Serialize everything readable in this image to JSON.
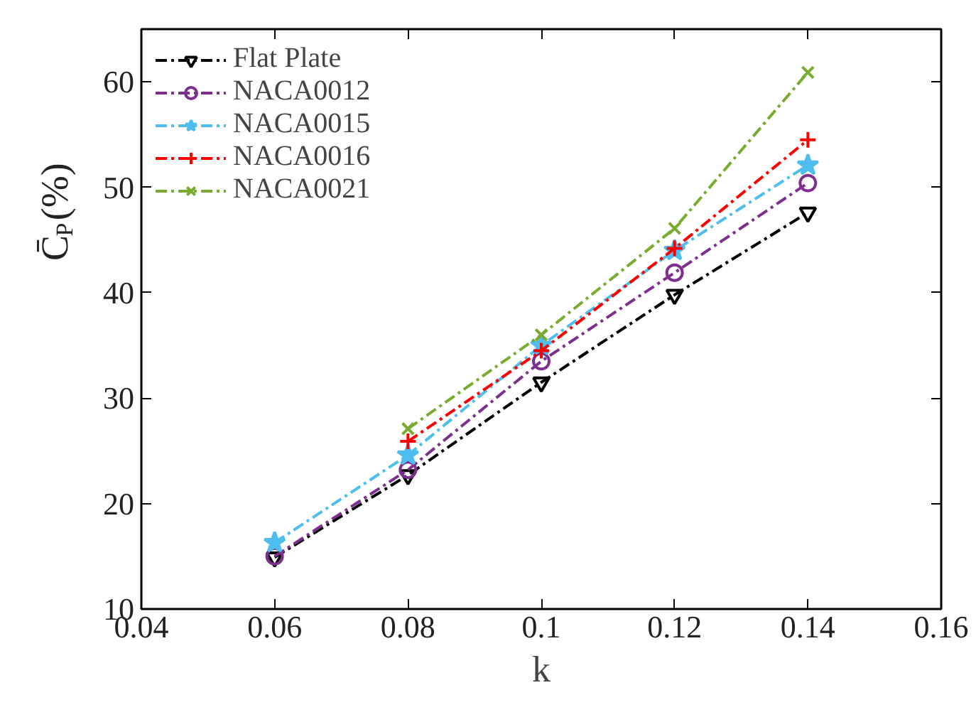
{
  "chart_data": {
    "type": "line",
    "xlabel": "k",
    "ylabel": "C̄$_{P}$(%)",
    "x": [
      0.06,
      0.08,
      0.1,
      0.12,
      0.14
    ],
    "series": [
      {
        "name": "Flat Plate",
        "color": "#000000",
        "marker": "triangle",
        "values": [
          14.9,
          22.7,
          31.5,
          39.8,
          47.6
        ]
      },
      {
        "name": "NACA0012",
        "color": "#7e2f8e",
        "marker": "circle",
        "values": [
          15.0,
          23.2,
          33.5,
          41.9,
          50.4
        ]
      },
      {
        "name": "NACA0015",
        "color": "#4dbeee",
        "marker": "star",
        "values": [
          16.3,
          24.6,
          35.0,
          44.0,
          52.1
        ]
      },
      {
        "name": "NACA0016",
        "color": "#ff0000",
        "marker": "cross",
        "values": [
          null,
          25.9,
          34.5,
          44.2,
          54.5
        ]
      },
      {
        "name": "NACA0021",
        "color": "#77ac30",
        "marker": "x",
        "values": [
          null,
          27.1,
          36.0,
          46.1,
          60.9
        ]
      }
    ],
    "line_style": "dashed",
    "legend": "top left",
    "grid": false,
    "xlim": [
      0.04,
      0.16
    ],
    "xticks": [
      0.04,
      0.06,
      0.08,
      0.1,
      0.12,
      0.14,
      0.16
    ],
    "ylim": [
      10,
      65
    ],
    "yticks": [
      10,
      20,
      30,
      40,
      50,
      60
    ]
  }
}
